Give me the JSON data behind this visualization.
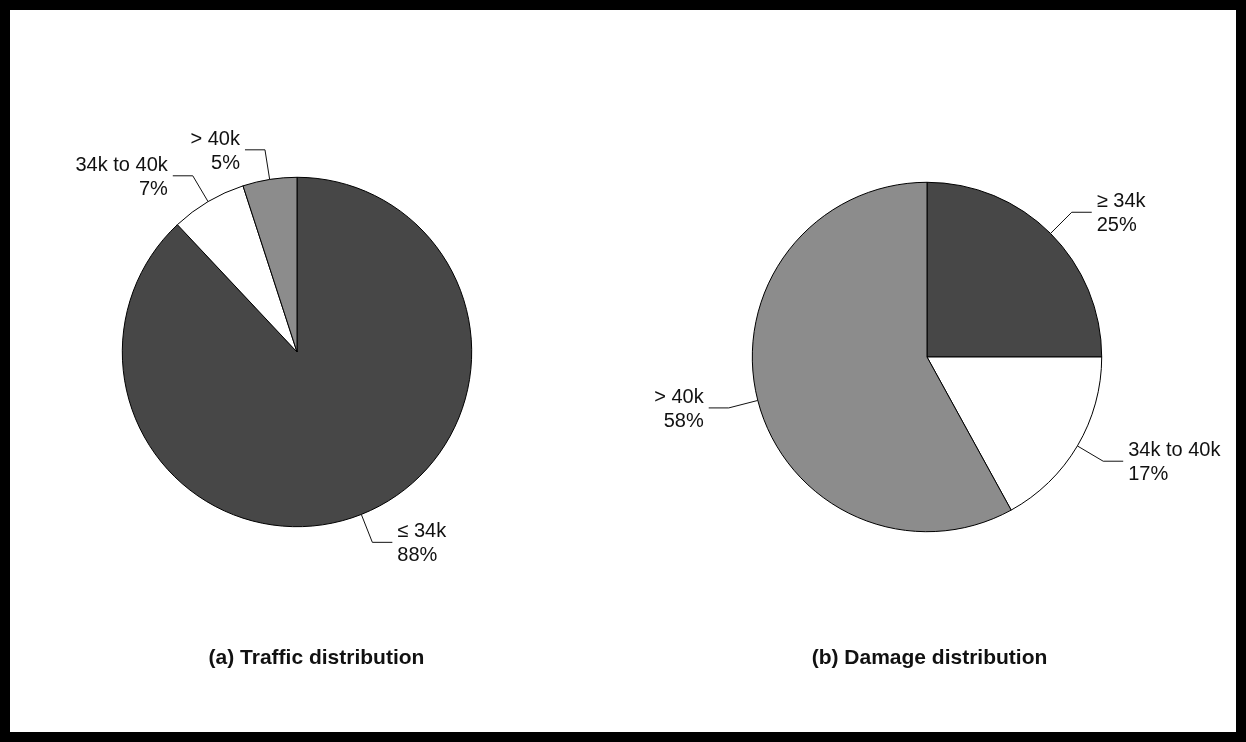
{
  "chart_data": [
    {
      "type": "pie",
      "title": "(a) Traffic distribution",
      "categories": [
        "≤ 34k",
        "34k to 40k",
        "> 40k"
      ],
      "values": [
        88,
        7,
        5
      ],
      "value_labels": [
        "88%",
        "7%",
        "5%"
      ],
      "colors": [
        "#474747",
        "#ffffff",
        "#8c8c8c"
      ],
      "legend": false
    },
    {
      "type": "pie",
      "title": "(b) Damage distribution",
      "categories": [
        "≥ 34k",
        "34k to 40k",
        "> 40k"
      ],
      "values": [
        25,
        17,
        58
      ],
      "value_labels": [
        "25%",
        "17%",
        "58%"
      ],
      "colors": [
        "#474747",
        "#ffffff",
        "#8c8c8c"
      ],
      "legend": false
    }
  ]
}
